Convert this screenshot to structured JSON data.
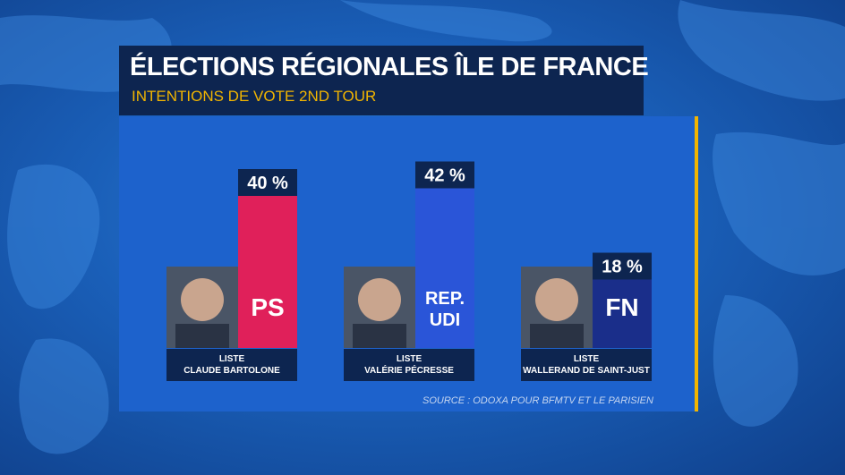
{
  "title": "ÉLECTIONS RÉGIONALES ÎLE DE FRANCE",
  "subtitle": "INTENTIONS DE VOTE 2ND TOUR",
  "source": "SOURCE : ODOXA POUR BFMTV ET LE PARISIEN",
  "colors": {
    "ps": "#e0205a",
    "rep_udi": "#2a55d8",
    "fn": "#1a2e8a",
    "accent": "#f2b500",
    "title_bg": "#0d2550"
  },
  "chart_data": {
    "type": "bar",
    "unit": "%",
    "categories": [
      "PS",
      "REP. UDI",
      "FN"
    ],
    "values": [
      40,
      42,
      18
    ],
    "value_labels": [
      "40 %",
      "42 %",
      "18 %"
    ],
    "bar_labels": [
      [
        "PS"
      ],
      [
        "REP.",
        "UDI"
      ],
      [
        "FN"
      ]
    ],
    "captions": [
      [
        "LISTE",
        "CLAUDE BARTOLONE"
      ],
      [
        "LISTE",
        "VALÉRIE PÉCRESSE"
      ],
      [
        "LISTE",
        "WALLERAND DE SAINT-JUST"
      ]
    ]
  }
}
